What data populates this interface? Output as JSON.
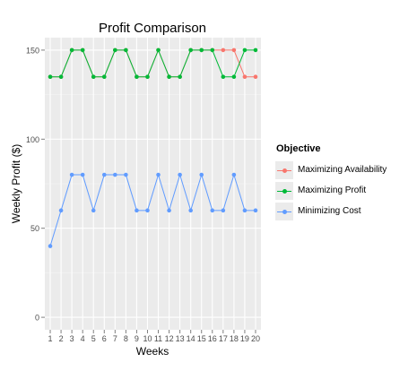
{
  "chart_data": {
    "type": "line",
    "title": "Profit Comparison",
    "xlabel": "Weeks",
    "ylabel": "Weekly Profit ($)",
    "x": [
      1,
      2,
      3,
      4,
      5,
      6,
      7,
      8,
      9,
      10,
      11,
      12,
      13,
      14,
      15,
      16,
      17,
      18,
      19,
      20
    ],
    "xlim": [
      0.5,
      20.5
    ],
    "ylim": [
      -7,
      157
    ],
    "y_ticks": [
      0,
      50,
      100,
      150
    ],
    "grid": true,
    "legend": {
      "title": "Objective",
      "position": "right"
    },
    "series": [
      {
        "name": "Maximizing Availability",
        "color": "#F8766D",
        "values": [
          135,
          135,
          150,
          150,
          135,
          135,
          150,
          150,
          135,
          135,
          150,
          135,
          135,
          150,
          150,
          150,
          150,
          150,
          135,
          135
        ]
      },
      {
        "name": "Maximizing Profit",
        "color": "#00BA38",
        "values": [
          135,
          135,
          150,
          150,
          135,
          135,
          150,
          150,
          135,
          135,
          150,
          135,
          135,
          150,
          150,
          150,
          135,
          135,
          150,
          150
        ]
      },
      {
        "name": "Minimizing Cost",
        "color": "#619CFF",
        "values": [
          40,
          60,
          80,
          80,
          60,
          80,
          80,
          80,
          60,
          60,
          80,
          60,
          80,
          60,
          80,
          60,
          60,
          80,
          60,
          60
        ]
      }
    ]
  }
}
